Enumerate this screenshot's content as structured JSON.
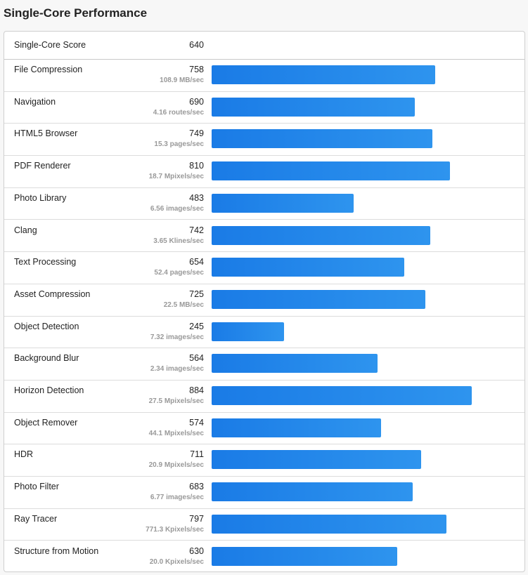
{
  "title": "Single-Core Performance",
  "header": {
    "label": "Single-Core Score",
    "score": "640"
  },
  "chart_data": {
    "type": "bar",
    "orientation": "horizontal",
    "max_value": 1050,
    "categories": [
      "File Compression",
      "Navigation",
      "HTML5 Browser",
      "PDF Renderer",
      "Photo Library",
      "Clang",
      "Text Processing",
      "Asset Compression",
      "Object Detection",
      "Background Blur",
      "Horizon Detection",
      "Object Remover",
      "HDR",
      "Photo Filter",
      "Ray Tracer",
      "Structure from Motion"
    ],
    "values": [
      758,
      690,
      749,
      810,
      483,
      742,
      654,
      725,
      245,
      564,
      884,
      574,
      711,
      683,
      797,
      630
    ],
    "units": [
      "108.9 MB/sec",
      "4.16 routes/sec",
      "15.3 pages/sec",
      "18.7 Mpixels/sec",
      "6.56 images/sec",
      "3.65 Klines/sec",
      "52.4 pages/sec",
      "22.5 MB/sec",
      "7.32 images/sec",
      "2.34 images/sec",
      "27.5 Mpixels/sec",
      "44.1 Mpixels/sec",
      "20.9 Mpixels/sec",
      "6.77 images/sec",
      "771.3 Kpixels/sec",
      "20.0 Kpixels/sec"
    ],
    "bar_color": "#1a7be6"
  }
}
